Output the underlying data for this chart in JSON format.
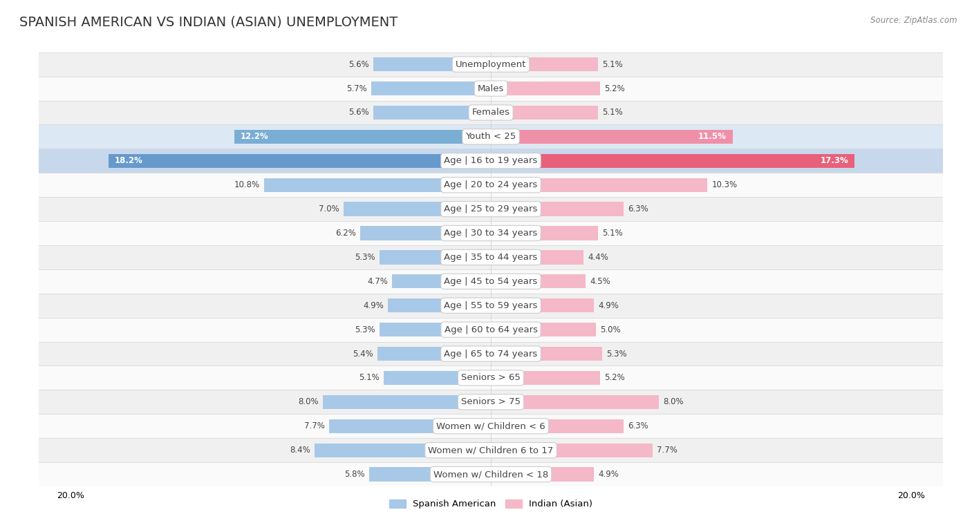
{
  "title": "SPANISH AMERICAN VS INDIAN (ASIAN) UNEMPLOYMENT",
  "source": "Source: ZipAtlas.com",
  "categories": [
    "Unemployment",
    "Males",
    "Females",
    "Youth < 25",
    "Age | 16 to 19 years",
    "Age | 20 to 24 years",
    "Age | 25 to 29 years",
    "Age | 30 to 34 years",
    "Age | 35 to 44 years",
    "Age | 45 to 54 years",
    "Age | 55 to 59 years",
    "Age | 60 to 64 years",
    "Age | 65 to 74 years",
    "Seniors > 65",
    "Seniors > 75",
    "Women w/ Children < 6",
    "Women w/ Children 6 to 17",
    "Women w/ Children < 18"
  ],
  "spanish_american": [
    5.6,
    5.7,
    5.6,
    12.2,
    18.2,
    10.8,
    7.0,
    6.2,
    5.3,
    4.7,
    4.9,
    5.3,
    5.4,
    5.1,
    8.0,
    7.7,
    8.4,
    5.8
  ],
  "indian_asian": [
    5.1,
    5.2,
    5.1,
    11.5,
    17.3,
    10.3,
    6.3,
    5.1,
    4.4,
    4.5,
    4.9,
    5.0,
    5.3,
    5.2,
    8.0,
    6.3,
    7.7,
    4.9
  ],
  "spanish_color_normal": "#a8c8e8",
  "spanish_color_youth": "#7aaed4",
  "spanish_color_age16": "#6699cc",
  "indian_color_normal": "#f4b8c8",
  "indian_color_youth": "#f090a8",
  "indian_color_age16": "#e8607a",
  "row_bg_odd": "#f0f0f0",
  "row_bg_even": "#fafafa",
  "row_bg_youth": "#dce8f4",
  "row_bg_age16": "#c8d8ec",
  "separator_color": "#d8d8d8",
  "text_color_dark": "#444444",
  "text_color_white": "#ffffff",
  "max_value": 20.0,
  "bar_height": 0.58,
  "title_fontsize": 14,
  "label_fontsize": 9.5,
  "value_fontsize": 8.5,
  "source_fontsize": 8.5
}
